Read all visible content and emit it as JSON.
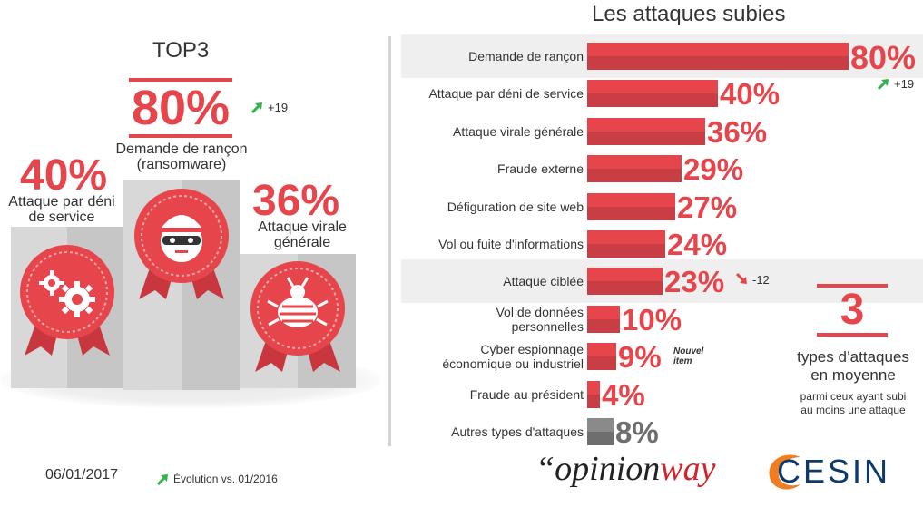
{
  "top3": {
    "title": "TOP3",
    "first": {
      "value": "80%",
      "label_line1": "Demande de rançon",
      "label_line2": "(ransomware)",
      "delta": "+19"
    },
    "second": {
      "value": "40%",
      "label_line1": "Attaque par déni",
      "label_line2": "de service"
    },
    "third": {
      "value": "36%",
      "label_line1": "Attaque virale",
      "label_line2": "générale"
    }
  },
  "footer": {
    "date": "06/01/2017",
    "evolution_legend": "Évolution vs. 01/2016"
  },
  "colors": {
    "red": "#e5454b",
    "red_dark": "#c93e44",
    "grey_bar": "#8a8a8a",
    "grey_bar_dark": "#6e6e6e",
    "arrow_green": "#2fb34a"
  },
  "chart_data": {
    "type": "bar",
    "orientation": "horizontal",
    "title": "Les attaques subies",
    "categories": [
      "Demande de rançon",
      "Attaque par déni de service",
      "Attaque virale générale",
      "Fraude externe",
      "Défiguration de site web",
      "Vol ou fuite d'informations",
      "Attaque ciblée",
      "Vol de données personnelles",
      "Cyber espionnage économique ou industriel",
      "Fraude au président",
      "Autres types d'attaques"
    ],
    "category_lines": [
      [
        "Demande de rançon"
      ],
      [
        "Attaque par déni de service"
      ],
      [
        "Attaque virale générale"
      ],
      [
        "Fraude externe"
      ],
      [
        "Défiguration de site web"
      ],
      [
        "Vol ou fuite d'informations"
      ],
      [
        "Attaque ciblée"
      ],
      [
        "Vol de données",
        "personnelles"
      ],
      [
        "Cyber espionnage",
        "économique ou industriel"
      ],
      [
        "Fraude au président"
      ],
      [
        "Autres types d'attaques"
      ]
    ],
    "values": [
      80,
      40,
      36,
      29,
      27,
      24,
      23,
      10,
      9,
      4,
      8
    ],
    "value_labels": [
      "80%",
      "40%",
      "36%",
      "29%",
      "27%",
      "24%",
      "23%",
      "10%",
      "9%",
      "4%",
      "8%"
    ],
    "highlighted": [
      true,
      false,
      false,
      false,
      false,
      false,
      true,
      false,
      false,
      false,
      false
    ],
    "grey": [
      false,
      false,
      false,
      false,
      false,
      false,
      false,
      false,
      false,
      false,
      true
    ],
    "deltas": [
      "+19",
      "",
      "",
      "",
      "",
      "",
      "-12",
      "",
      "",
      "",
      ""
    ],
    "new_item_note": "Nouvel item",
    "new_item_index": 8,
    "unit": "%"
  },
  "summary": {
    "number": "3",
    "line1": "types d’attaques",
    "line2": "en moyenne",
    "sub1": "parmi ceux ayant subi",
    "sub2": "au moins une attaque"
  },
  "logos": {
    "opinionway_quote": "“",
    "opinionway_a": "opinion",
    "opinionway_b": "way",
    "cesin": "CESIN"
  }
}
